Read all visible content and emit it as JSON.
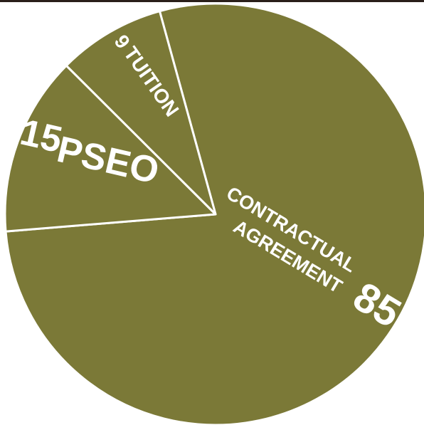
{
  "chart_data": {
    "type": "pie",
    "title": "",
    "slices": [
      {
        "value": 85,
        "label": "CONTRACTUAL AGREEMENT",
        "label_lines": [
          "CONTRACTUAL",
          "AGREEMENT"
        ],
        "value_text": "85",
        "color": "#7b7937"
      },
      {
        "value": 15,
        "label": "PSEO",
        "label_lines": [
          "PSEO"
        ],
        "value_text": "15",
        "color": "#7b7937"
      },
      {
        "value": 9,
        "label": "TUITION",
        "label_lines": [
          "TUITION"
        ],
        "value_text": "9",
        "color": "#7b7937"
      }
    ],
    "separator_color": "#ffffff",
    "legend": "none"
  }
}
